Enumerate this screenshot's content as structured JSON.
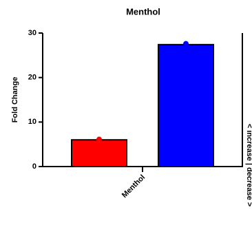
{
  "chart_data": {
    "type": "bar",
    "title": "Menthol",
    "y_label": "Fold Change",
    "right_label": "< increase | decrease >",
    "categories": [
      "Menthol"
    ],
    "series": [
      {
        "color": "#ff0000",
        "values": [
          6
        ],
        "points": [
          6.1
        ]
      },
      {
        "color": "#0000ff",
        "values": [
          27.4
        ],
        "points": [
          27.6
        ]
      }
    ],
    "ylim": [
      0,
      30
    ],
    "yticks": [
      0,
      10,
      20,
      30
    ],
    "grid": false
  }
}
